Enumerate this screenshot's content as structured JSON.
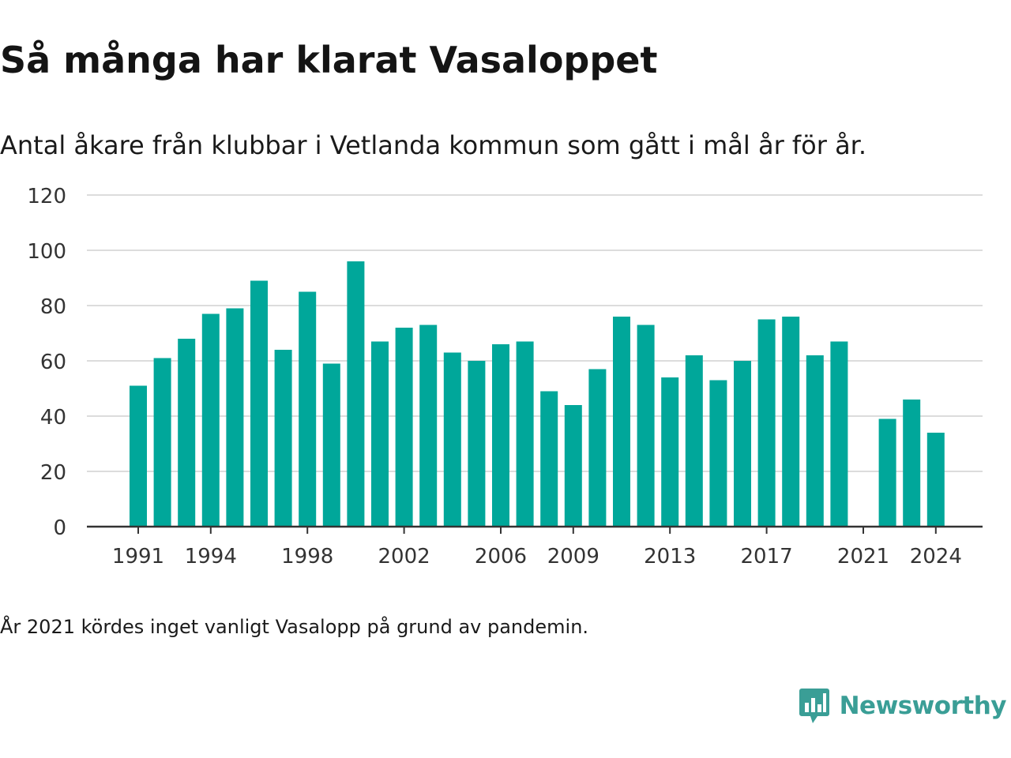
{
  "header": {
    "title": "Så många har klarat Vasaloppet",
    "subtitle": "Antal åkare från klubbar i Vetlanda kommun som gått i mål år för år."
  },
  "footer": {
    "note": "År 2021 kördes inget vanligt Vasalopp på grund av pandemin.",
    "brand": "Newsworthy",
    "brand_icon": "bar-chart-speech-bubble-icon"
  },
  "colors": {
    "bar": "#00a79a",
    "grid": "#dcdcdc",
    "axis": "#333333",
    "text": "#1a1a1a",
    "brand": "#3a9e96"
  },
  "chart_data": {
    "type": "bar",
    "title": "Så många har klarat Vasaloppet",
    "subtitle": "Antal åkare från klubbar i Vetlanda kommun som gått i mål år för år.",
    "xlabel": "",
    "ylabel": "",
    "ylim": [
      0,
      120
    ],
    "yticks": [
      0,
      20,
      40,
      60,
      80,
      100,
      120
    ],
    "xticks": [
      1991,
      1994,
      1998,
      2002,
      2006,
      2009,
      2013,
      2017,
      2021,
      2024
    ],
    "grid": true,
    "legend": "none",
    "categories": [
      1991,
      1992,
      1993,
      1994,
      1995,
      1996,
      1997,
      1998,
      1999,
      2000,
      2001,
      2002,
      2003,
      2004,
      2005,
      2006,
      2007,
      2008,
      2009,
      2010,
      2011,
      2012,
      2013,
      2014,
      2015,
      2016,
      2017,
      2018,
      2019,
      2020,
      2021,
      2022,
      2023,
      2024
    ],
    "values": [
      51,
      61,
      68,
      77,
      79,
      89,
      64,
      85,
      59,
      96,
      67,
      72,
      73,
      63,
      60,
      66,
      67,
      49,
      44,
      57,
      76,
      73,
      54,
      62,
      53,
      60,
      75,
      76,
      62,
      67,
      null,
      39,
      46,
      34
    ]
  }
}
